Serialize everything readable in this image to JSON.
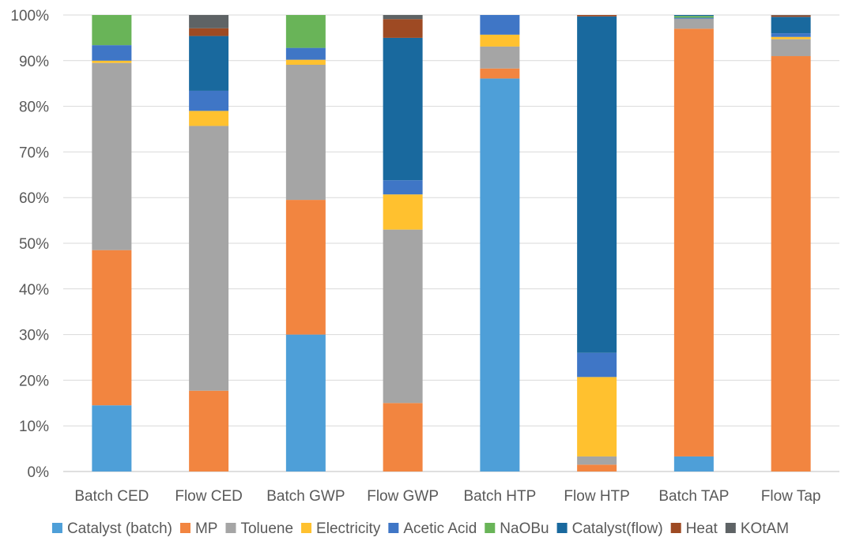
{
  "chart_data": {
    "type": "bar",
    "stacked": true,
    "normalized": true,
    "categories": [
      "Batch CED",
      "Flow CED",
      "Batch GWP",
      "Flow GWP",
      "Batch HTP",
      "Flow HTP",
      "Batch TAP",
      "Flow Tap"
    ],
    "yticks": [
      "0%",
      "10%",
      "20%",
      "30%",
      "40%",
      "50%",
      "60%",
      "70%",
      "80%",
      "90%",
      "100%"
    ],
    "ylim": [
      0,
      100
    ],
    "grid": true,
    "legend_position": "bottom",
    "series": [
      {
        "name": "Catalyst (batch)",
        "color": "#4e9fd8",
        "values": [
          14.5,
          0,
          30,
          0,
          86,
          0,
          3.3,
          0
        ]
      },
      {
        "name": "MP",
        "color": "#f28540",
        "values": [
          34,
          17.7,
          29.5,
          15,
          2.2,
          1.5,
          93.7,
          91
        ]
      },
      {
        "name": "Toluene",
        "color": "#a5a5a5",
        "values": [
          41,
          58,
          29.6,
          38,
          4.8,
          1.8,
          2.2,
          3.7
        ]
      },
      {
        "name": "Electricity",
        "color": "#ffc12f",
        "values": [
          0.5,
          3.3,
          1.1,
          7.7,
          2.6,
          17.4,
          0,
          0.5
        ]
      },
      {
        "name": "Acetic Acid",
        "color": "#3f76c6",
        "values": [
          3.4,
          4.4,
          2.6,
          3.1,
          4.3,
          5.3,
          0.2,
          0.8
        ]
      },
      {
        "name": "NaOBu",
        "color": "#69b458",
        "values": [
          6.6,
          0,
          7.2,
          0,
          0,
          0,
          0.4,
          0
        ]
      },
      {
        "name": "Catalyst(flow)",
        "color": "#19699e",
        "values": [
          0,
          12,
          0,
          31.2,
          0,
          73.7,
          0.2,
          3.6
        ]
      },
      {
        "name": "Heat",
        "color": "#9e4a23",
        "values": [
          0,
          1.7,
          0,
          4.1,
          0,
          0.3,
          0,
          0.3
        ]
      },
      {
        "name": "KOtAM",
        "color": "#5e6365",
        "values": [
          0,
          2.9,
          0,
          0.9,
          0,
          0,
          0,
          0.1
        ]
      }
    ]
  }
}
